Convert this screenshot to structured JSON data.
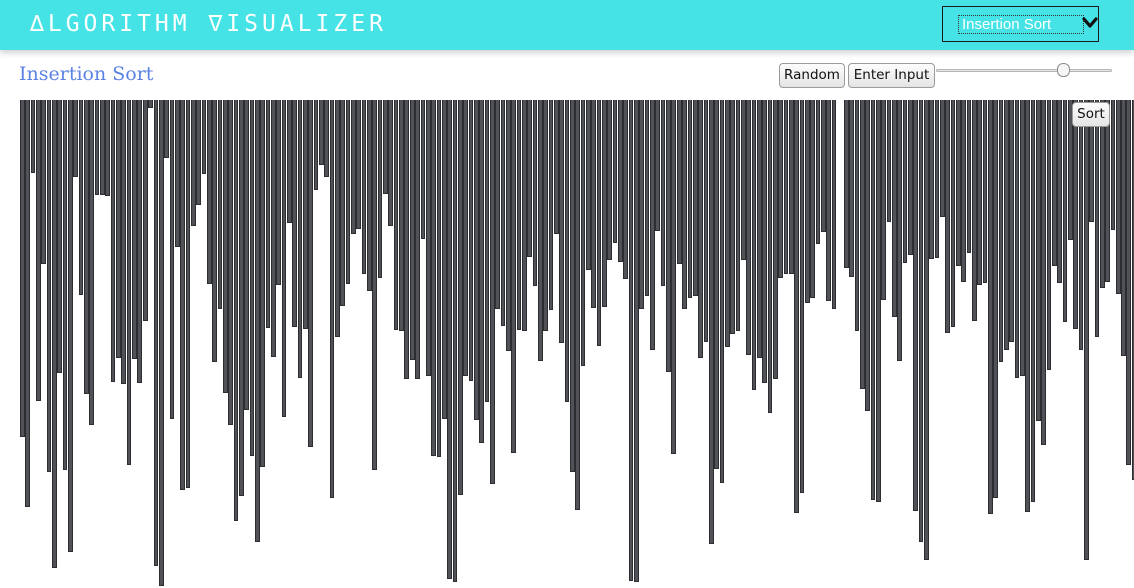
{
  "header": {
    "brand": "∆LGORITHM ∇ISUALIZER",
    "algorithm_select": {
      "selected": "Insertion Sort",
      "icon": "chevron-down-icon"
    }
  },
  "main": {
    "title": "Insertion Sort",
    "random_button": "Random",
    "enter_input_button": "Enter Input",
    "speed_slider_value": 0.73,
    "sort_button": "Sort"
  },
  "colors": {
    "header_bg": "#45e3e6",
    "title": "#5b82e3",
    "bar": "#505257"
  },
  "array": {
    "values": [
      337,
      407,
      73,
      301,
      164,
      372,
      468,
      273,
      370,
      452,
      77,
      195,
      294,
      325,
      95,
      95,
      96,
      282,
      258,
      284,
      365,
      259,
      283,
      221,
      8,
      466,
      486,
      58,
      319,
      147,
      390,
      388,
      126,
      105,
      74,
      184,
      262,
      209,
      293,
      325,
      421,
      396,
      310,
      356,
      442,
      367,
      228,
      257,
      185,
      317,
      123,
      227,
      278,
      229,
      347,
      90,
      65,
      77,
      398,
      237,
      206,
      184,
      134,
      129,
      174,
      191,
      370,
      178,
      94,
      126,
      230,
      231,
      279,
      260,
      279,
      139,
      276,
      356,
      357,
      319,
      479,
      482,
      395,
      276,
      281,
      320,
      343,
      302,
      384,
      209,
      226,
      251,
      353,
      230,
      231,
      157,
      186,
      261,
      231,
      210,
      134,
      243,
      302,
      372,
      410,
      266,
      170,
      208,
      246,
      207,
      160,
      143,
      162,
      179,
      481,
      482,
      209,
      196,
      250,
      131,
      186,
      272,
      354,
      164,
      209,
      198,
      196,
      258,
      242,
      444,
      369,
      383,
      247,
      234,
      231,
      160,
      255,
      290,
      258,
      283,
      313,
      279,
      178,
      174,
      174,
      413,
      393,
      203,
      198,
      144,
      132,
      201,
      209,
      168,
      177,
      231,
      289,
      311,
      400,
      402,
      200,
      122,
      217,
      261,
      163,
      155,
      411,
      442,
      460,
      159,
      158,
      117,
      233,
      227,
      166,
      182,
      153,
      221,
      185,
      183,
      414,
      398,
      262,
      250,
      242,
      278,
      276,
      412,
      402,
      321,
      345,
      270,
      166,
      183,
      222,
      140,
      229,
      250,
      460,
      122,
      237,
      188,
      182,
      130,
      194,
      256,
      365,
      380,
      353,
      253,
      116,
      223,
      162,
      408,
      407,
      220,
      115,
      268,
      268,
      363,
      365,
      246,
      296,
      458,
      87,
      146,
      96,
      82,
      119,
      101,
      133,
      247,
      187,
      393,
      125,
      152,
      113,
      160
    ],
    "segments": [
      {
        "from": 0,
        "to": 153,
        "step": 5.34,
        "start": 1,
        "width": 4.7
      },
      {
        "from": 153,
        "to": 231,
        "step": 5.33,
        "start": 825,
        "width": 4.7
      }
    ]
  }
}
